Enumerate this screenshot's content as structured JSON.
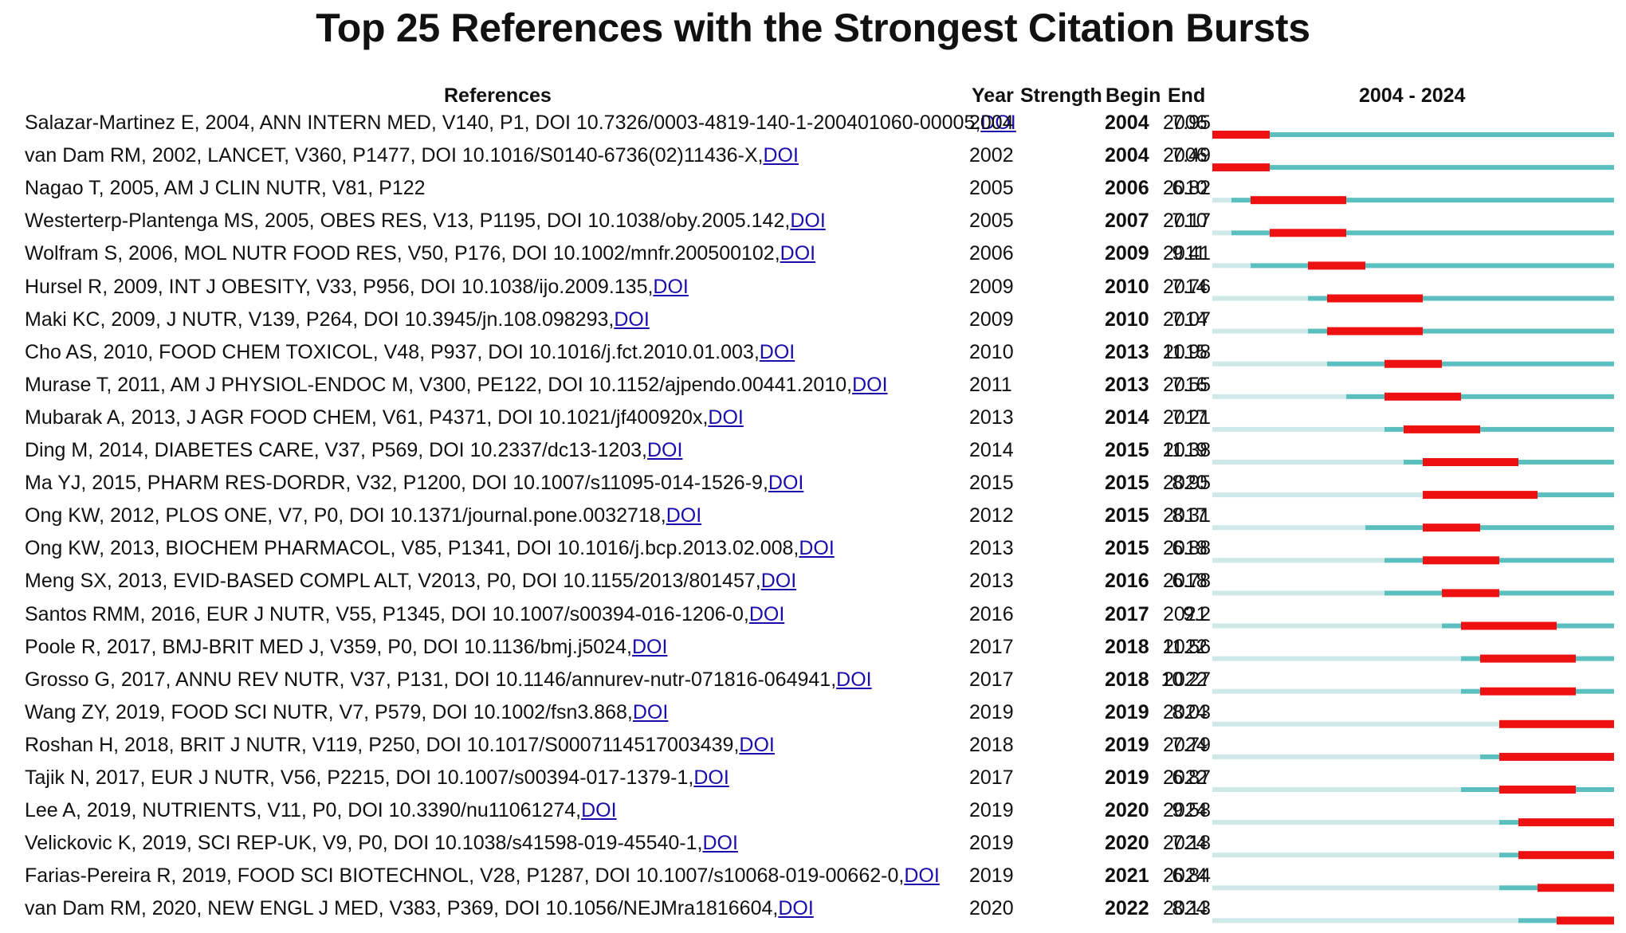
{
  "title": "Top 25 References with the Strongest Citation Bursts",
  "headers": {
    "references": "References",
    "year": "Year",
    "strength": "Strength",
    "begin": "Begin",
    "end": "End",
    "range": "2004 - 2024"
  },
  "colors": {
    "burst": "#ee1111",
    "active": "#5bbfbf",
    "inactive": "#cfe9e9"
  },
  "chart_data": {
    "type": "table",
    "title": "Top 25 References with the Strongest Citation Bursts",
    "timeline": [
      2004,
      2024
    ],
    "columns": [
      "References",
      "Year",
      "Strength",
      "Begin",
      "End"
    ],
    "rows": [
      {
        "ref": "Salazar-Martinez E, 2004, ANN INTERN MED, V140, P1, DOI 10.7326/0003-4819-140-1-200401060-00005, ",
        "doi": "DOI",
        "year": 2004,
        "strength": "7.95",
        "begin": 2004,
        "end": 2006
      },
      {
        "ref": "van Dam RM, 2002, LANCET, V360, P1477, DOI 10.1016/S0140-6736(02)11436-X, ",
        "doi": "DOI",
        "year": 2002,
        "strength": "7.49",
        "begin": 2004,
        "end": 2006
      },
      {
        "ref": "Nagao T, 2005, AM J CLIN NUTR, V81, P122",
        "doi": "",
        "year": 2005,
        "strength": "6.82",
        "begin": 2006,
        "end": 2010
      },
      {
        "ref": "Westerterp-Plantenga MS, 2005, OBES RES, V13, P1195, DOI 10.1038/oby.2005.142, ",
        "doi": "DOI",
        "year": 2005,
        "strength": "7.17",
        "begin": 2007,
        "end": 2010
      },
      {
        "ref": "Wolfram S, 2006, MOL NUTR FOOD RES, V50, P176, DOI 10.1002/mnfr.200500102, ",
        "doi": "DOI",
        "year": 2006,
        "strength": "9.41",
        "begin": 2009,
        "end": 2011
      },
      {
        "ref": "Hursel R, 2009, INT J OBESITY, V33, P956, DOI 10.1038/ijo.2009.135, ",
        "doi": "DOI",
        "year": 2009,
        "strength": "7.76",
        "begin": 2010,
        "end": 2014
      },
      {
        "ref": "Maki KC, 2009, J NUTR, V139, P264, DOI 10.3945/jn.108.098293, ",
        "doi": "DOI",
        "year": 2009,
        "strength": "7.07",
        "begin": 2010,
        "end": 2014
      },
      {
        "ref": "Cho AS, 2010, FOOD CHEM TOXICOL, V48, P937, DOI 10.1016/j.fct.2010.01.003, ",
        "doi": "DOI",
        "year": 2010,
        "strength": "11.98",
        "begin": 2013,
        "end": 2015
      },
      {
        "ref": "Murase T, 2011, AM J PHYSIOL-ENDOC M, V300, PE122, DOI 10.1152/ajpendo.00441.2010, ",
        "doi": "DOI",
        "year": 2011,
        "strength": "7.55",
        "begin": 2013,
        "end": 2016
      },
      {
        "ref": "Mubarak A, 2013, J AGR FOOD CHEM, V61, P4371, DOI 10.1021/jf400920x, ",
        "doi": "DOI",
        "year": 2013,
        "strength": "7.21",
        "begin": 2014,
        "end": 2017
      },
      {
        "ref": "Ding M, 2014, DIABETES CARE, V37, P569, DOI 10.2337/dc13-1203, ",
        "doi": "DOI",
        "year": 2014,
        "strength": "11.38",
        "begin": 2015,
        "end": 2019
      },
      {
        "ref": "Ma YJ, 2015, PHARM RES-DORDR, V32, P1200, DOI 10.1007/s11095-014-1526-9, ",
        "doi": "DOI",
        "year": 2015,
        "strength": "8.95",
        "begin": 2015,
        "end": 2020
      },
      {
        "ref": "Ong KW, 2012, PLOS ONE, V7, P0, DOI 10.1371/journal.pone.0032718, ",
        "doi": "DOI",
        "year": 2012,
        "strength": "8.31",
        "begin": 2015,
        "end": 2017
      },
      {
        "ref": "Ong KW, 2013, BIOCHEM PHARMACOL, V85, P1341, DOI 10.1016/j.bcp.2013.02.008, ",
        "doi": "DOI",
        "year": 2013,
        "strength": "6.88",
        "begin": 2015,
        "end": 2018
      },
      {
        "ref": "Meng SX, 2013, EVID-BASED COMPL ALT, V2013, P0, DOI 10.1155/2013/801457, ",
        "doi": "DOI",
        "year": 2013,
        "strength": "6.78",
        "begin": 2016,
        "end": 2018
      },
      {
        "ref": "Santos RMM, 2016, EUR J NUTR, V55, P1345, DOI 10.1007/s00394-016-1206-0, ",
        "doi": "DOI",
        "year": 2016,
        "strength": "9.2",
        "begin": 2017,
        "end": 2021
      },
      {
        "ref": "Poole R, 2017, BMJ-BRIT MED J, V359, P0, DOI 10.1136/bmj.j5024, ",
        "doi": "DOI",
        "year": 2017,
        "strength": "11.56",
        "begin": 2018,
        "end": 2022
      },
      {
        "ref": "Grosso G, 2017, ANNU REV NUTR, V37, P131, DOI 10.1146/annurev-nutr-071816-064941, ",
        "doi": "DOI",
        "year": 2017,
        "strength": "10.27",
        "begin": 2018,
        "end": 2022
      },
      {
        "ref": "Wang ZY, 2019, FOOD SCI NUTR, V7, P579, DOI 10.1002/fsn3.868, ",
        "doi": "DOI",
        "year": 2019,
        "strength": "8.03",
        "begin": 2019,
        "end": 2024
      },
      {
        "ref": "Roshan H, 2018, BRIT J NUTR, V119, P250, DOI 10.1017/S0007114517003439, ",
        "doi": "DOI",
        "year": 2018,
        "strength": "7.79",
        "begin": 2019,
        "end": 2024
      },
      {
        "ref": "Tajik N, 2017, EUR J NUTR, V56, P2215, DOI 10.1007/s00394-017-1379-1, ",
        "doi": "DOI",
        "year": 2017,
        "strength": "6.87",
        "begin": 2019,
        "end": 2022
      },
      {
        "ref": "Lee A, 2019, NUTRIENTS, V11, P0, DOI 10.3390/nu11061274, ",
        "doi": "DOI",
        "year": 2019,
        "strength": "9.58",
        "begin": 2020,
        "end": 2024
      },
      {
        "ref": "Velickovic K, 2019, SCI REP-UK, V9, P0, DOI 10.1038/s41598-019-45540-1, ",
        "doi": "DOI",
        "year": 2019,
        "strength": "7.18",
        "begin": 2020,
        "end": 2024
      },
      {
        "ref": "Farias-Pereira R, 2019, FOOD SCI BIOTECHNOL, V28, P1287, DOI 10.1007/s10068-019-00662-0, ",
        "doi": "DOI",
        "year": 2019,
        "strength": "6.84",
        "begin": 2021,
        "end": 2024
      },
      {
        "ref": "van Dam RM, 2020, NEW ENGL J MED, V383, P369, DOI 10.1056/NEJMra1816604, ",
        "doi": "DOI",
        "year": 2020,
        "strength": "8.13",
        "begin": 2022,
        "end": 2024
      }
    ]
  }
}
